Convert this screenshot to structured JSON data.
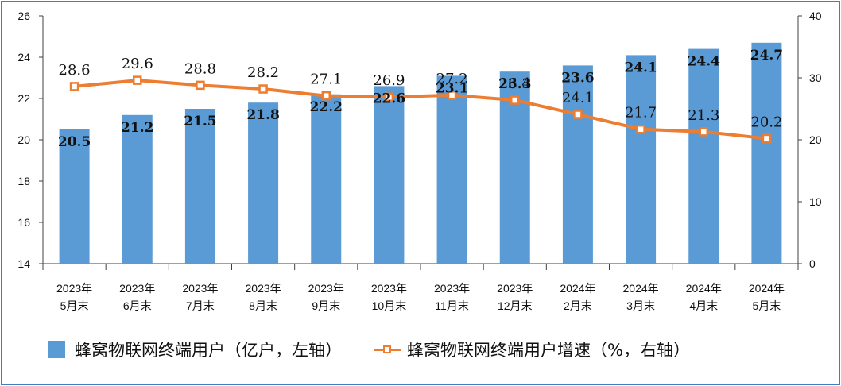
{
  "chart_data": {
    "type": "bar+line",
    "categories": [
      [
        "2023年",
        "5月末"
      ],
      [
        "2023年",
        "6月末"
      ],
      [
        "2023年",
        "7月末"
      ],
      [
        "2023年",
        "8月末"
      ],
      [
        "2023年",
        "9月末"
      ],
      [
        "2023年",
        "10月末"
      ],
      [
        "2023年",
        "11月末"
      ],
      [
        "2023年",
        "12月末"
      ],
      [
        "2024年",
        "2月末"
      ],
      [
        "2024年",
        "3月末"
      ],
      [
        "2024年",
        "4月末"
      ],
      [
        "2024年",
        "5月末"
      ]
    ],
    "series": [
      {
        "name": "蜂窝物联网终端用户（亿户，左轴）",
        "type": "bar",
        "axis": "left",
        "color": "#5b9bd5",
        "values": [
          20.5,
          21.2,
          21.5,
          21.8,
          22.2,
          22.6,
          23.1,
          23.3,
          23.6,
          24.1,
          24.4,
          24.7
        ],
        "labels": [
          "20.5",
          "21.2",
          "21.5",
          "21.8",
          "22.2",
          "22.6",
          "23.1",
          "23.3",
          "23.6",
          "24.1",
          "24.4",
          "24.7"
        ]
      },
      {
        "name": "蜂窝物联网终端用户增速（%，右轴）",
        "type": "line",
        "axis": "right",
        "color": "#ed7d31",
        "values": [
          28.6,
          29.6,
          28.8,
          28.2,
          27.1,
          26.9,
          27.2,
          26.4,
          24.1,
          21.7,
          21.3,
          20.2
        ],
        "labels": [
          "28.6",
          "29.6",
          "28.8",
          "28.2",
          "27.1",
          "26.9",
          "27.2",
          "26.4",
          "24.1",
          "21.7",
          "21.3",
          "20.2"
        ]
      }
    ],
    "y_left": {
      "min": 14,
      "max": 26,
      "ticks": [
        "14",
        "16",
        "18",
        "20",
        "22",
        "24",
        "26"
      ]
    },
    "y_right": {
      "min": 0,
      "max": 40,
      "ticks": [
        "0",
        "10",
        "20",
        "30",
        "40"
      ]
    },
    "grid": false,
    "legend_position": "bottom"
  }
}
